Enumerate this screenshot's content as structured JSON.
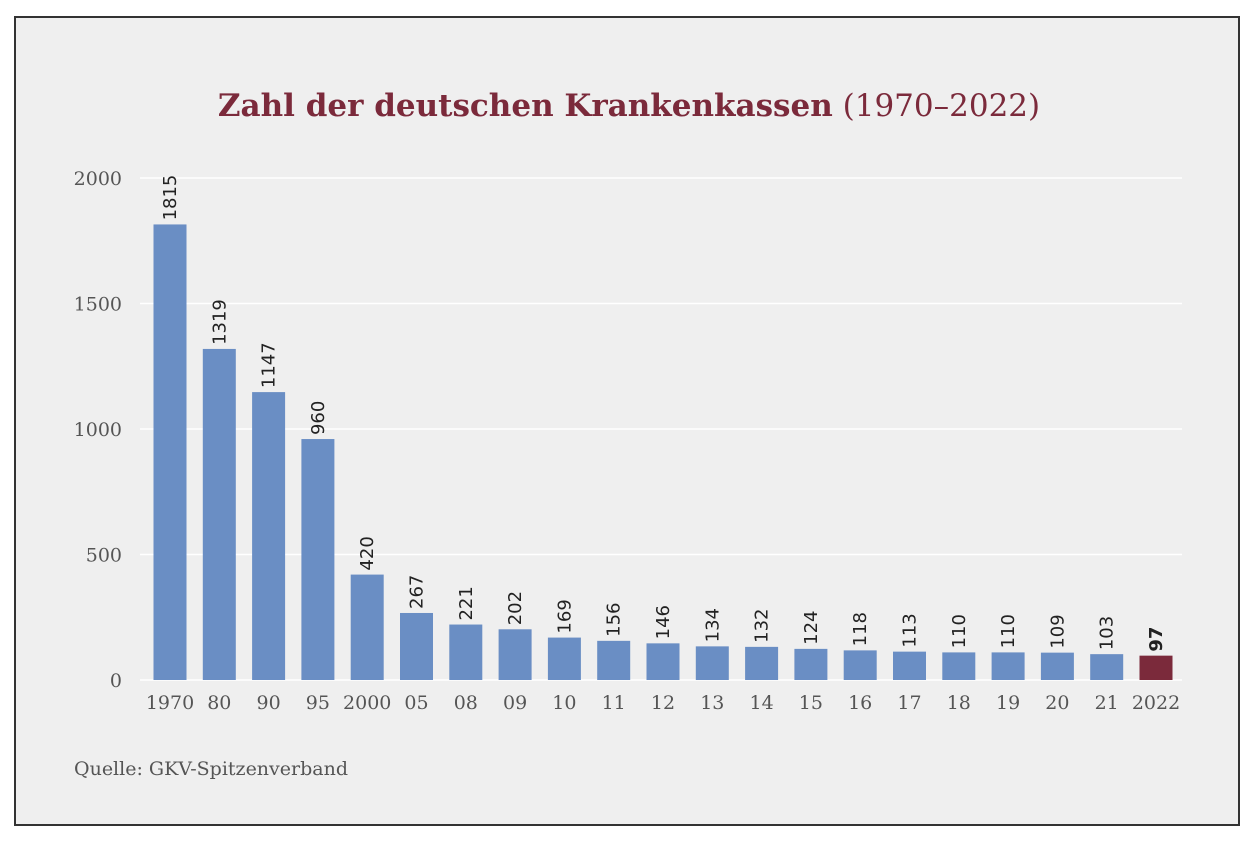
{
  "chart_data": {
    "type": "bar",
    "title": "Zahl der deutschen Krankenkassen",
    "title_suffix": "(1970–2022)",
    "categories": [
      "1970",
      "80",
      "90",
      "95",
      "2000",
      "05",
      "08",
      "09",
      "10",
      "11",
      "12",
      "13",
      "14",
      "15",
      "16",
      "17",
      "18",
      "19",
      "20",
      "21",
      "2022"
    ],
    "values": [
      1815,
      1319,
      1147,
      960,
      420,
      267,
      221,
      202,
      169,
      156,
      146,
      134,
      132,
      124,
      118,
      113,
      110,
      110,
      109,
      103,
      97
    ],
    "data_labels": [
      "1815",
      "1319",
      "1147",
      "960",
      "420",
      "267",
      "221",
      "202",
      "169",
      "156",
      "146",
      "134",
      "132",
      "124",
      "118",
      "113",
      "110",
      "110",
      "109",
      "103",
      "97"
    ],
    "yticks": [
      "0",
      "500",
      "1000",
      "1500",
      "2000"
    ],
    "ylim": [
      0,
      2000
    ],
    "xlabel": "",
    "ylabel": "",
    "grid": true,
    "bar_color": "#6a8ec4",
    "highlight_color": "#7b2a3b",
    "highlight_index": 20,
    "title_color": "#7b2a3b"
  },
  "source": "Quelle: GKV-Spitzenverband"
}
